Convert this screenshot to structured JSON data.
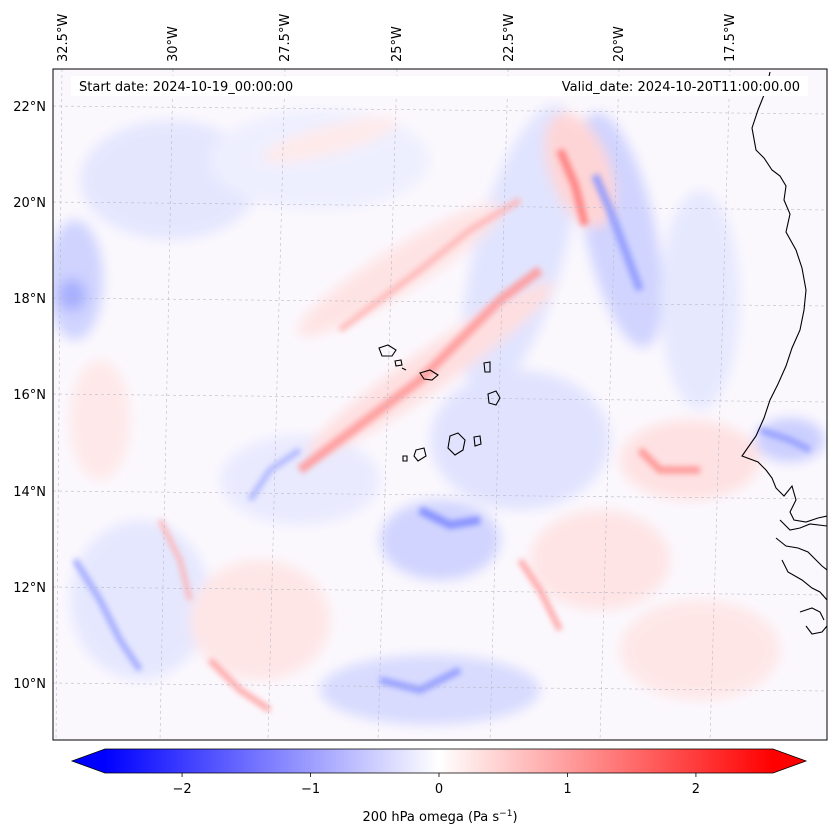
{
  "map": {
    "start_date_label": "Start date: 2024-10-19_00:00:00",
    "valid_date_label": "Valid_date: 2024-10-20T11:00:00.00",
    "lon_labels": [
      "32.5°W",
      "30°W",
      "27.5°W",
      "25°W",
      "22.5°W",
      "20°W",
      "17.5°W"
    ],
    "lat_labels": [
      "22°N",
      "20°N",
      "18°N",
      "16°N",
      "14°N",
      "12°N",
      "10°N"
    ],
    "field": "200 hPa omega",
    "region": "Cape Verde and West African coast"
  },
  "colorbar": {
    "label": "200 hPa omega (Pa s",
    "label_sup": "−1",
    "label_close": ")",
    "ticks": [
      "−2",
      "−1",
      "0",
      "1",
      "2"
    ],
    "tick_values": [
      -2,
      -1,
      0,
      1,
      2
    ],
    "range": [
      -2.6,
      2.6
    ],
    "extend": "both",
    "cmap_low": "#0000ff",
    "cmap_mid": "#ffffff",
    "cmap_high": "#ff0000"
  }
}
